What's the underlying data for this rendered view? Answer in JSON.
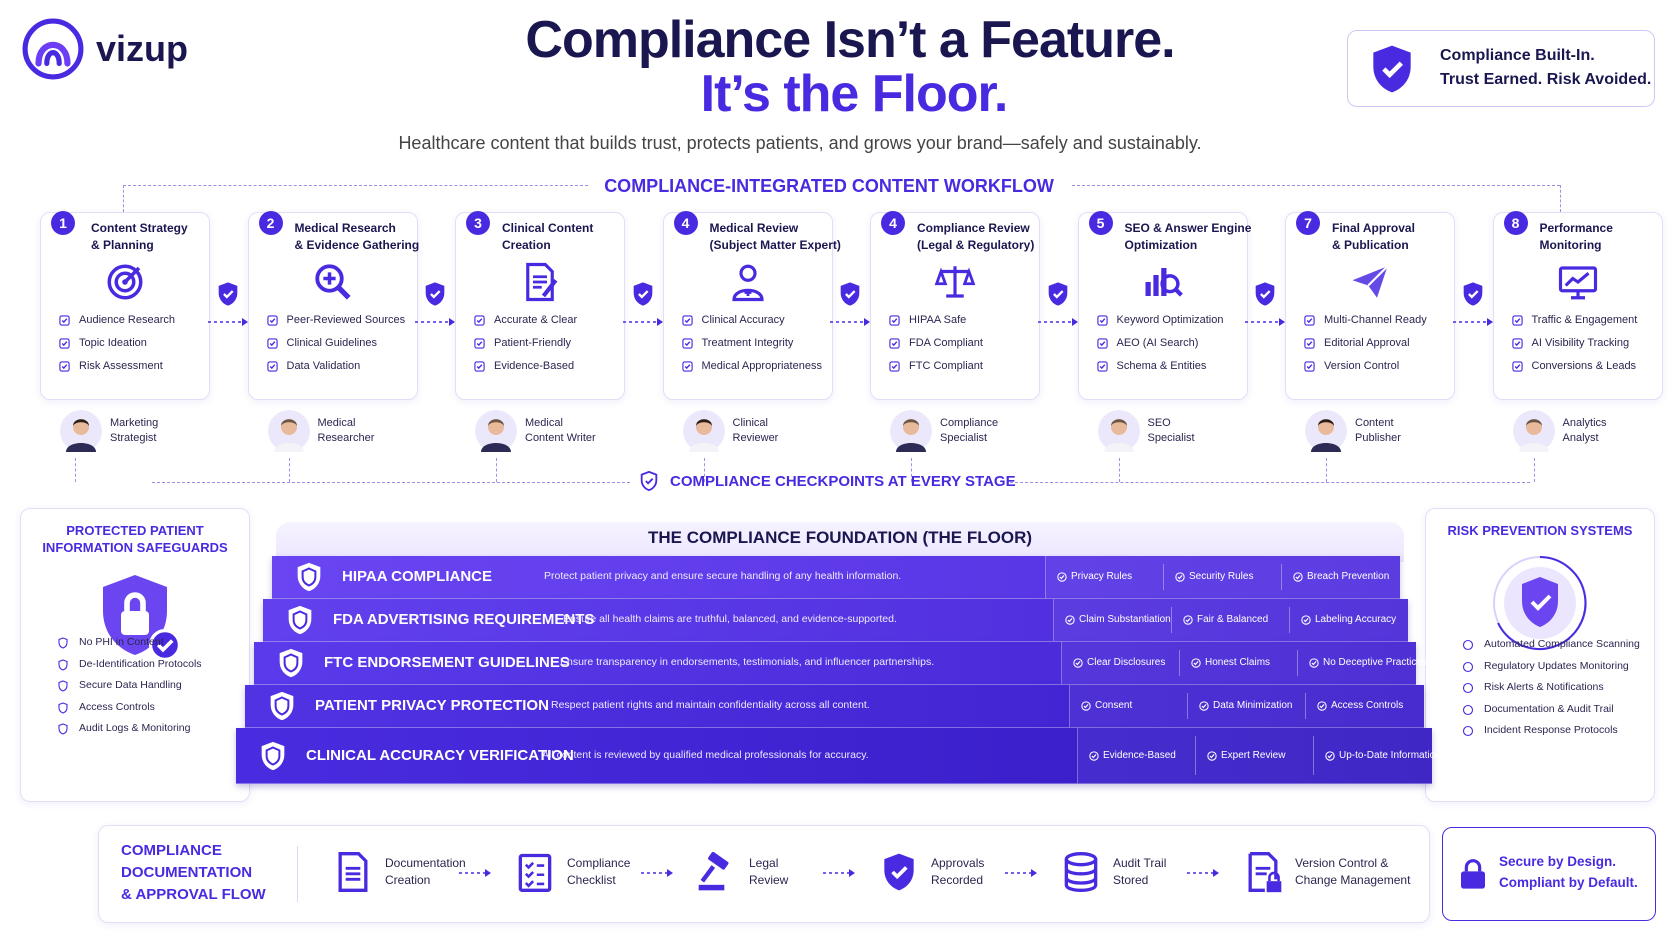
{
  "header": {
    "brand": "vizup",
    "title_line1": "Compliance Isn’t a Feature.",
    "title_line2": "It’s the Floor.",
    "subtitle": "Healthcare content that builds trust, protects patients, and grows your brand—safely and sustainably.",
    "badge": [
      "Compliance Built-In.",
      "Trust Earned. Risk Avoided."
    ]
  },
  "workflow": {
    "title": "COMPLIANCE-INTEGRATED CONTENT WORKFLOW",
    "steps": [
      {
        "number": "1",
        "title": [
          "Content Strategy",
          "& Planning"
        ],
        "items": [
          "Audience Research",
          "Topic Ideation",
          "Risk Assessment"
        ],
        "role": [
          "Marketing",
          "Strategist"
        ]
      },
      {
        "number": "2",
        "title": [
          "Medical Research",
          "& Evidence Gathering"
        ],
        "items": [
          "Peer-Reviewed Sources",
          "Clinical Guidelines",
          "Data Validation"
        ],
        "role": [
          "Medical",
          "Researcher"
        ]
      },
      {
        "number": "3",
        "title": [
          "Clinical Content",
          "Creation"
        ],
        "items": [
          "Accurate & Clear",
          "Patient-Friendly",
          "Evidence-Based"
        ],
        "role": [
          "Medical",
          "Content Writer"
        ]
      },
      {
        "number": "4",
        "title": [
          "Medical Review",
          "(Subject Matter Expert)"
        ],
        "items": [
          "Clinical Accuracy",
          "Treatment Integrity",
          "Medical Appropriateness"
        ],
        "role": [
          "Clinical",
          "Reviewer"
        ]
      },
      {
        "number": "4",
        "title": [
          "Compliance Review",
          "(Legal & Regulatory)"
        ],
        "items": [
          "HIPAA Safe",
          "FDA Compliant",
          "FTC Compliant"
        ],
        "role": [
          "Compliance",
          "Specialist"
        ]
      },
      {
        "number": "5",
        "title": [
          "SEO & Answer Engine",
          "Optimization"
        ],
        "items": [
          "Keyword Optimization",
          "AEO (AI Search)",
          "Schema & Entities"
        ],
        "role": [
          "SEO",
          "Specialist"
        ]
      },
      {
        "number": "7",
        "title": [
          "Final Approval",
          "& Publication"
        ],
        "items": [
          "Multi-Channel Ready",
          "Editorial Approval",
          "Version Control"
        ],
        "role": [
          "Content",
          "Publisher"
        ]
      },
      {
        "number": "8",
        "title": [
          "Performance",
          "Monitoring"
        ],
        "items": [
          "Traffic & Engagement",
          "AI Visibility Tracking",
          "Conversions & Leads"
        ],
        "role": [
          "Analytics",
          "Analyst"
        ]
      }
    ],
    "checkpoints": "COMPLIANCE CHECKPOINTS AT EVERY STAGE"
  },
  "safeguards": {
    "title": [
      "PROTECTED PATIENT",
      "INFORMATION SAFEGUARDS"
    ],
    "items": [
      "No PHI in Content",
      "De-Identification Protocols",
      "Secure Data Handling",
      "Access Controls",
      "Audit Logs & Monitoring"
    ]
  },
  "foundation": {
    "title": "THE COMPLIANCE FOUNDATION (THE FLOOR)",
    "rows": [
      {
        "name": "HIPAA COMPLIANCE",
        "description": "Protect patient privacy and ensure secure handling of any health information.",
        "checks": [
          "Privacy Rules",
          "Security Rules",
          "Breach Prevention"
        ]
      },
      {
        "name": "FDA ADVERTISING REQUIREMENTS",
        "description": "Ensure all health claims are truthful, balanced, and evidence-supported.",
        "checks": [
          "Claim Substantiation",
          "Fair & Balanced",
          "Labeling Accuracy"
        ]
      },
      {
        "name": "FTC ENDORSEMENT GUIDELINES",
        "description": "Ensure transparency in endorsements, testimonials, and influencer partnerships.",
        "checks": [
          "Clear Disclosures",
          "Honest Claims",
          "No Deceptive Practices"
        ]
      },
      {
        "name": "PATIENT PRIVACY PROTECTION",
        "description": "Respect patient rights and maintain confidentiality across all content.",
        "checks": [
          "Consent",
          "Data Minimization",
          "Access Controls"
        ]
      },
      {
        "name": "CLINICAL ACCURACY VERIFICATION",
        "description": "All content is reviewed by qualified medical professionals for accuracy.",
        "checks": [
          "Evidence-Based",
          "Expert Review",
          "Up-to-Date Information"
        ]
      }
    ]
  },
  "risk": {
    "title": "RISK PREVENTION SYSTEMS",
    "items": [
      "Automated Compliance Scanning",
      "Regulatory Updates Monitoring",
      "Risk Alerts & Notifications",
      "Documentation & Audit Trail",
      "Incident Response Protocols"
    ]
  },
  "flow": {
    "title": [
      "COMPLIANCE",
      "DOCUMENTATION",
      "& APPROVAL FLOW"
    ],
    "steps": [
      [
        "Documentation",
        "Creation"
      ],
      [
        "Compliance",
        "Checklist"
      ],
      [
        "Legal",
        "Review"
      ],
      [
        "Approvals",
        "Recorded"
      ],
      [
        "Audit Trail",
        "Stored"
      ],
      [
        "Version Control &",
        "Change Management"
      ]
    ]
  },
  "closing": [
    "Secure by Design.",
    "Compliant by Default."
  ]
}
